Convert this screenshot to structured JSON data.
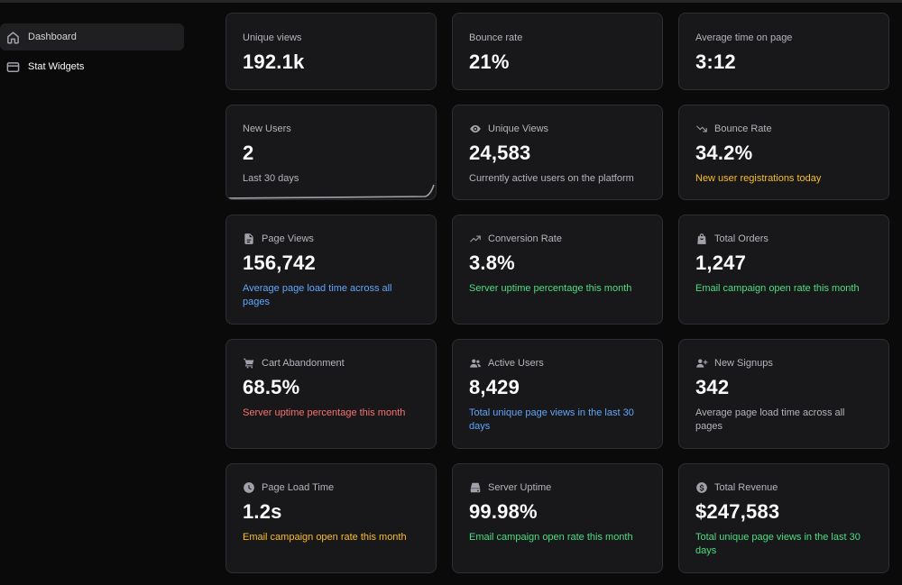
{
  "sidebar": {
    "items": [
      {
        "label": "Dashboard",
        "icon": "home-icon",
        "active": true
      },
      {
        "label": "Stat Widgets",
        "icon": "layers-icon",
        "active": false
      }
    ]
  },
  "stats_simple": [
    {
      "label": "Unique views",
      "value": "192.1k"
    },
    {
      "label": "Bounce rate",
      "value": "21%"
    },
    {
      "label": "Average time on page",
      "value": "3:12"
    }
  ],
  "stats_row2": [
    {
      "label": "New Users",
      "value": "2",
      "desc": "Last 30 days"
    },
    {
      "label": "Unique Views",
      "value": "24,583",
      "desc": "Currently active users on the platform",
      "icon": "eye-icon"
    },
    {
      "label": "Bounce Rate",
      "value": "34.2%",
      "desc": "New user registrations today",
      "icon": "trending-down-icon"
    }
  ],
  "stats_row3": [
    {
      "label": "Page Views",
      "value": "156,742",
      "desc": "Average page load time across all pages",
      "icon": "document-icon"
    },
    {
      "label": "Conversion Rate",
      "value": "3.8%",
      "desc": "Server uptime percentage this month",
      "icon": "trending-up-icon"
    },
    {
      "label": "Total Orders",
      "value": "1,247",
      "desc": "Email campaign open rate this month",
      "icon": "shopping-bag-icon"
    }
  ],
  "stats_row4": [
    {
      "label": "Cart Abandonment",
      "value": "68.5%",
      "desc": "Server uptime percentage this month",
      "icon": "cart-icon"
    },
    {
      "label": "Active Users",
      "value": "8,429",
      "desc": "Total unique page views in the last 30 days",
      "icon": "users-icon"
    },
    {
      "label": "New Signups",
      "value": "342",
      "desc": "Average page load time across all pages",
      "icon": "user-plus-icon"
    }
  ],
  "stats_row5": [
    {
      "label": "Page Load Time",
      "value": "1.2s",
      "desc": "Email campaign open rate this month",
      "icon": "clock-icon"
    },
    {
      "label": "Server Uptime",
      "value": "99.98%",
      "desc": "Email campaign open rate this month",
      "icon": "server-icon"
    },
    {
      "label": "Total Revenue",
      "value": "$247,583",
      "desc": "Total unique page views in the last 30 days",
      "icon": "dollar-icon"
    }
  ],
  "colors": {
    "background": "#0a0a0a",
    "card": "#18181b",
    "border": "#2e2e33",
    "warning": "#fbbf24",
    "info": "#60a5fa",
    "success": "#4ade80",
    "danger": "#f87171"
  }
}
